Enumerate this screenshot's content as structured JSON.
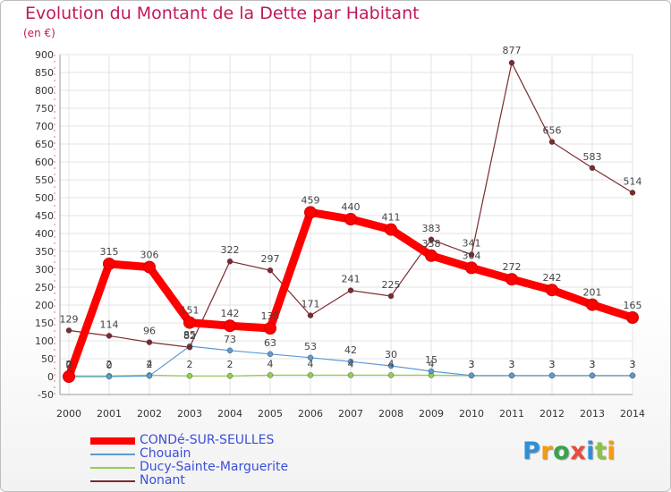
{
  "chart_data": {
    "type": "line",
    "title": "Evolution du Montant de la Dette par Habitant",
    "unit_label": "(en €)",
    "x": [
      2000,
      2001,
      2002,
      2003,
      2004,
      2005,
      2006,
      2007,
      2008,
      2009,
      2010,
      2011,
      2012,
      2013,
      2014
    ],
    "ylim": [
      -50,
      900
    ],
    "yticks": [
      -50,
      0,
      50,
      100,
      150,
      200,
      250,
      300,
      350,
      400,
      450,
      500,
      550,
      600,
      650,
      700,
      750,
      800,
      850,
      900
    ],
    "grid": true,
    "legend_position": "bottom-left",
    "series": [
      {
        "name": "CONDé-SUR-SEULLES",
        "color": "#ff0000",
        "values": [
          0,
          315,
          306,
          151,
          142,
          135,
          459,
          440,
          411,
          338,
          304,
          272,
          242,
          201,
          165
        ],
        "labels": [
          "0",
          "315",
          "306",
          "151",
          "142",
          "135",
          "459",
          "440",
          "411",
          "338",
          "304",
          "272",
          "242",
          "201",
          "165"
        ]
      },
      {
        "name": "Chouain",
        "color": "#5b9bd5",
        "values": [
          0,
          0,
          2,
          85,
          73,
          63,
          53,
          42,
          30,
          15,
          3,
          3,
          3,
          3,
          3
        ],
        "labels": [
          "0",
          "0",
          "2",
          "85",
          "73",
          "63",
          "53",
          "42",
          "30",
          "15",
          "3",
          "3",
          "3",
          "3",
          "3"
        ]
      },
      {
        "name": "Ducy-Sainte-Marguerite",
        "color": "#8fd14f",
        "values": [
          2,
          2,
          4,
          2,
          2,
          4,
          4,
          4,
          4,
          4,
          3,
          3,
          3,
          3,
          3
        ],
        "labels": [
          "2",
          "2",
          "4",
          "2",
          "2",
          "4",
          "4",
          "4",
          "4",
          "4",
          "3",
          "3",
          "3",
          "3",
          "3"
        ]
      },
      {
        "name": "Nonant",
        "color": "#7b2a2e",
        "values": [
          129,
          114,
          96,
          82,
          322,
          297,
          171,
          241,
          225,
          383,
          341,
          877,
          656,
          583,
          514
        ],
        "labels": [
          "129",
          "114",
          "96",
          "82",
          "322",
          "297",
          "171",
          "241",
          "225",
          "383",
          "341",
          "877",
          "656",
          "583",
          "514"
        ]
      }
    ]
  },
  "logo": {
    "text": "Proxiti"
  }
}
